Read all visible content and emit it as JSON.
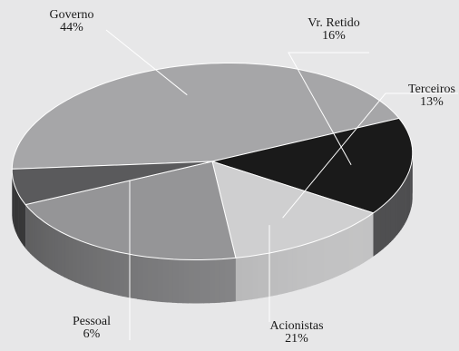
{
  "chart_data": {
    "type": "pie",
    "title": "",
    "slices": [
      {
        "label": "Governo",
        "value": 44,
        "display": "44%",
        "color": "#a6a6a8"
      },
      {
        "label": "Vr. Retido",
        "value": 16,
        "display": "16%",
        "color": "#1a1a1a"
      },
      {
        "label": "Terceiros",
        "value": 13,
        "display": "13%",
        "color": "#cfcfd0"
      },
      {
        "label": "Acionistas",
        "value": 21,
        "display": "21%",
        "color": "#959597"
      },
      {
        "label": "Pessoal",
        "value": 6,
        "display": "6%",
        "color": "#5a5a5c"
      }
    ],
    "legend": "none",
    "style": "3d-exploded-labels-with-leader-lines"
  }
}
